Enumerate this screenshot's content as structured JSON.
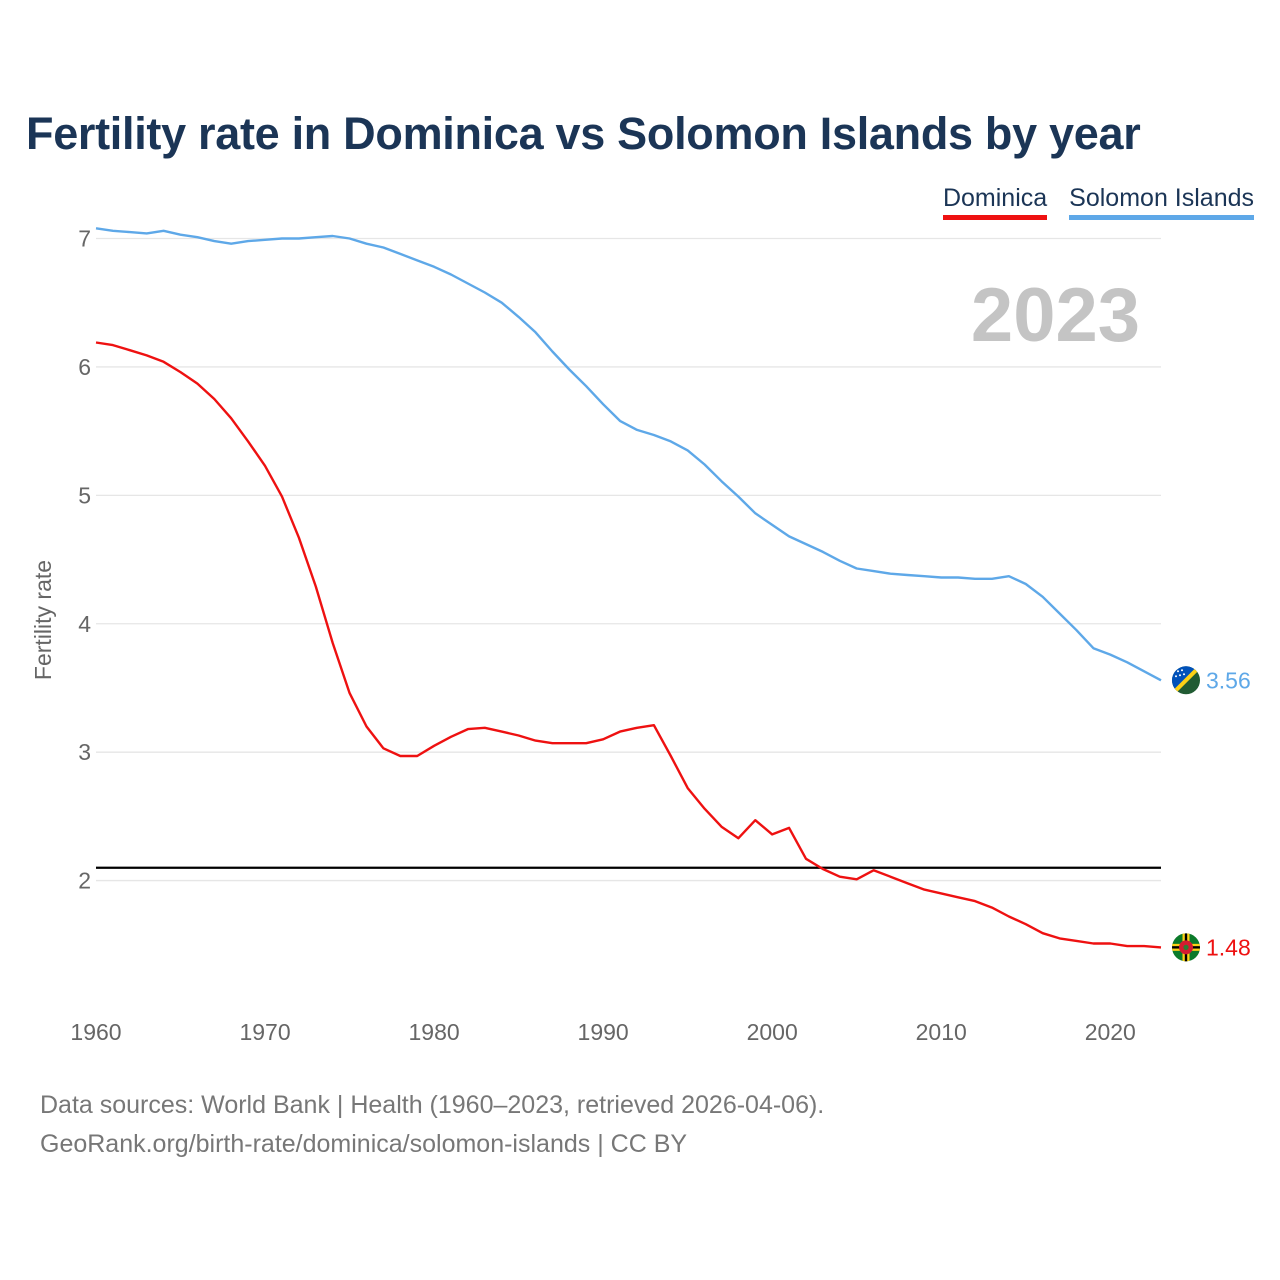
{
  "chart_data": {
    "type": "line",
    "title": "Fertility rate in Dominica vs Solomon Islands by year",
    "ylabel": "Fertility rate",
    "xlabel": "",
    "xlim": [
      1960,
      2023
    ],
    "ylim": [
      1.0,
      7.3
    ],
    "x_ticks": [
      1960,
      1970,
      1980,
      1990,
      2000,
      2010,
      2020
    ],
    "y_ticks": [
      2,
      3,
      4,
      5,
      6,
      7
    ],
    "x_tick_labels": [
      "1960",
      "1970",
      "1980",
      "1990",
      "2000",
      "2010",
      "2020"
    ],
    "y_tick_labels": [
      "2",
      "3",
      "4",
      "5",
      "6",
      "7"
    ],
    "year_label": "2023",
    "reference_line": {
      "value": 2.1,
      "color": "#000000"
    },
    "grid": true,
    "legend_position": "top-right",
    "x": [
      1960,
      1961,
      1962,
      1963,
      1964,
      1965,
      1966,
      1967,
      1968,
      1969,
      1970,
      1971,
      1972,
      1973,
      1974,
      1975,
      1976,
      1977,
      1978,
      1979,
      1980,
      1981,
      1982,
      1983,
      1984,
      1985,
      1986,
      1987,
      1988,
      1989,
      1990,
      1991,
      1992,
      1993,
      1994,
      1995,
      1996,
      1997,
      1998,
      1999,
      2000,
      2001,
      2002,
      2003,
      2004,
      2005,
      2006,
      2007,
      2008,
      2009,
      2010,
      2011,
      2012,
      2013,
      2014,
      2015,
      2016,
      2017,
      2018,
      2019,
      2020,
      2021,
      2022,
      2023
    ],
    "series": [
      {
        "name": "Dominica",
        "color": "#ee1111",
        "end_label": "1.48",
        "flag": "dominica-flag",
        "values": [
          6.19,
          6.17,
          6.13,
          6.09,
          6.04,
          5.96,
          5.87,
          5.75,
          5.6,
          5.42,
          5.23,
          4.99,
          4.67,
          4.29,
          3.85,
          3.46,
          3.2,
          3.03,
          2.97,
          2.97,
          3.05,
          3.12,
          3.18,
          3.19,
          3.16,
          3.13,
          3.09,
          3.07,
          3.07,
          3.07,
          3.1,
          3.16,
          3.19,
          3.21,
          2.97,
          2.72,
          2.56,
          2.42,
          2.33,
          2.47,
          2.36,
          2.41,
          2.17,
          2.09,
          2.03,
          2.01,
          2.08,
          2.03,
          1.98,
          1.93,
          1.9,
          1.87,
          1.84,
          1.79,
          1.72,
          1.66,
          1.59,
          1.55,
          1.53,
          1.51,
          1.51,
          1.49,
          1.49,
          1.48
        ]
      },
      {
        "name": "Solomon Islands",
        "color": "#5ea8e8",
        "end_label": "3.56",
        "flag": "solomon-islands-flag",
        "values": [
          7.08,
          7.06,
          7.05,
          7.04,
          7.06,
          7.03,
          7.01,
          6.98,
          6.96,
          6.98,
          6.99,
          7.0,
          7.0,
          7.01,
          7.02,
          7.0,
          6.96,
          6.93,
          6.88,
          6.83,
          6.78,
          6.72,
          6.65,
          6.58,
          6.5,
          6.39,
          6.27,
          6.12,
          5.98,
          5.85,
          5.71,
          5.58,
          5.51,
          5.47,
          5.42,
          5.35,
          5.24,
          5.11,
          4.99,
          4.86,
          4.77,
          4.68,
          4.62,
          4.56,
          4.49,
          4.43,
          4.41,
          4.39,
          4.38,
          4.37,
          4.36,
          4.36,
          4.35,
          4.35,
          4.37,
          4.31,
          4.21,
          4.08,
          3.95,
          3.81,
          3.76,
          3.7,
          3.63,
          3.56
        ]
      }
    ]
  },
  "legend": [
    "Dominica",
    "Solomon Islands"
  ],
  "footer": {
    "line1": "Data sources: World Bank | Health (1960–2023, retrieved 2026-04-06).",
    "line2": "GeoRank.org/birth-rate/dominica/solomon-islands | CC BY"
  }
}
